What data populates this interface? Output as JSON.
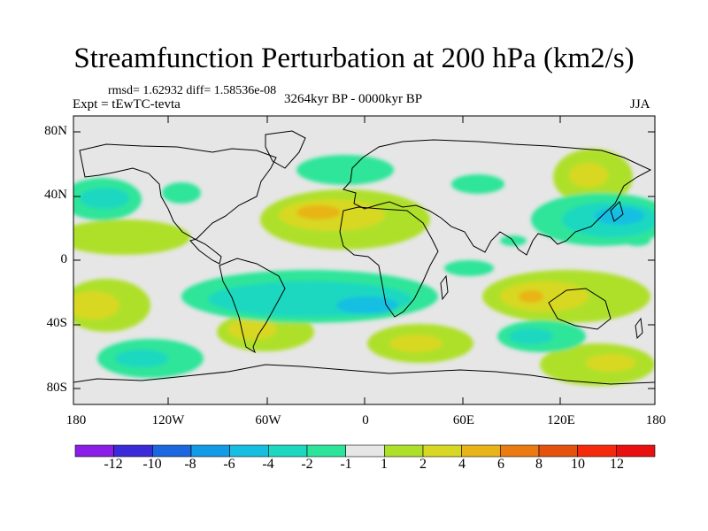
{
  "figure": {
    "title": "Streamfunction Perturbation at 200 hPa (km2/s)",
    "stats": "rmsd= 1.62932 diff= 1.58536e-08",
    "experiment": "Expt = tEwTC-tevta",
    "period": "3264kyr BP - 0000kyr BP",
    "season": "JJA"
  },
  "axes": {
    "y_ticks": [
      "80N",
      "40N",
      "0",
      "40S",
      "80S"
    ],
    "x_ticks": [
      "180",
      "120W",
      "60W",
      "0",
      "60E",
      "120E",
      "180"
    ],
    "lat_range": [
      -90,
      90
    ],
    "lon_range": [
      -180,
      180
    ]
  },
  "colorbar": {
    "labels": [
      "-12",
      "-10",
      "-8",
      "-6",
      "-4",
      "-2",
      "-1",
      "1",
      "2",
      "4",
      "6",
      "8",
      "10",
      "12"
    ],
    "colors": [
      "#8a1ee6",
      "#3a2ad8",
      "#1c66e0",
      "#129ae6",
      "#16bfe2",
      "#1dd8c0",
      "#2de59a",
      "#e6e6e6",
      "#aee02a",
      "#d8d824",
      "#e8b418",
      "#ec7a12",
      "#e4520e",
      "#f52a0c",
      "#e81010"
    ]
  },
  "colors": {
    "ocean_background": "#e6e6e6",
    "coastline": "#000000"
  }
}
